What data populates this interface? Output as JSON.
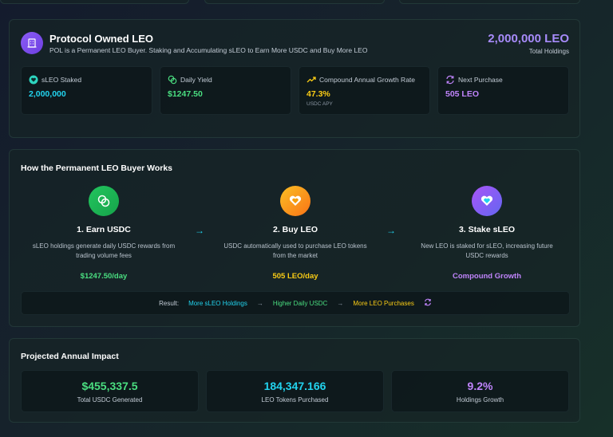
{
  "pol": {
    "title": "Protocol Owned LEO",
    "subtitle": "POL is a Permanent LEO Buyer. Staking and Accumulating sLEO to Earn More USDC and Buy More LEO",
    "total_value": "2,000,000 LEO",
    "total_label": "Total Holdings",
    "stats": [
      {
        "label": "sLEO Staked",
        "value": "2,000,000",
        "sub": "",
        "icon": "heart-shield-icon",
        "color": "#22d3ee"
      },
      {
        "label": "Daily Yield",
        "value": "$1247.50",
        "sub": "",
        "icon": "coins-icon",
        "color": "#4ade80"
      },
      {
        "label": "Compound Annual Growth Rate",
        "value": "47.3%",
        "sub": "USDC APY",
        "icon": "trend-up-icon",
        "color": "#facc15"
      },
      {
        "label": "Next Purchase",
        "value": "505 LEO",
        "sub": "",
        "icon": "refresh-icon",
        "color": "#c084fc"
      }
    ]
  },
  "how": {
    "title": "How the Permanent LEO Buyer Works",
    "steps": [
      {
        "title": "1. Earn USDC",
        "desc": "sLEO holdings generate daily USDC rewards from trading volume fees",
        "value": "$1247.50/day",
        "color": "#4ade80"
      },
      {
        "title": "2. Buy LEO",
        "desc": "USDC automatically used to purchase LEO tokens from the market",
        "value": "505 LEO/day",
        "color": "#facc15"
      },
      {
        "title": "3. Stake sLEO",
        "desc": "New LEO is staked for sLEO, increasing future USDC rewards",
        "value": "Compound Growth",
        "color": "#c084fc"
      }
    ],
    "result": {
      "label": "Result:",
      "items": [
        "More sLEO Holdings",
        "Higher Daily USDC",
        "More LEO Purchases"
      ]
    }
  },
  "projected": {
    "title": "Projected Annual Impact",
    "items": [
      {
        "value": "$455,337.5",
        "label": "Total USDC Generated",
        "color": "#4ade80"
      },
      {
        "value": "184,347.166",
        "label": "LEO Tokens Purchased",
        "color": "#22d3ee"
      },
      {
        "value": "9.2%",
        "label": "Holdings Growth",
        "color": "#c084fc"
      }
    ]
  }
}
